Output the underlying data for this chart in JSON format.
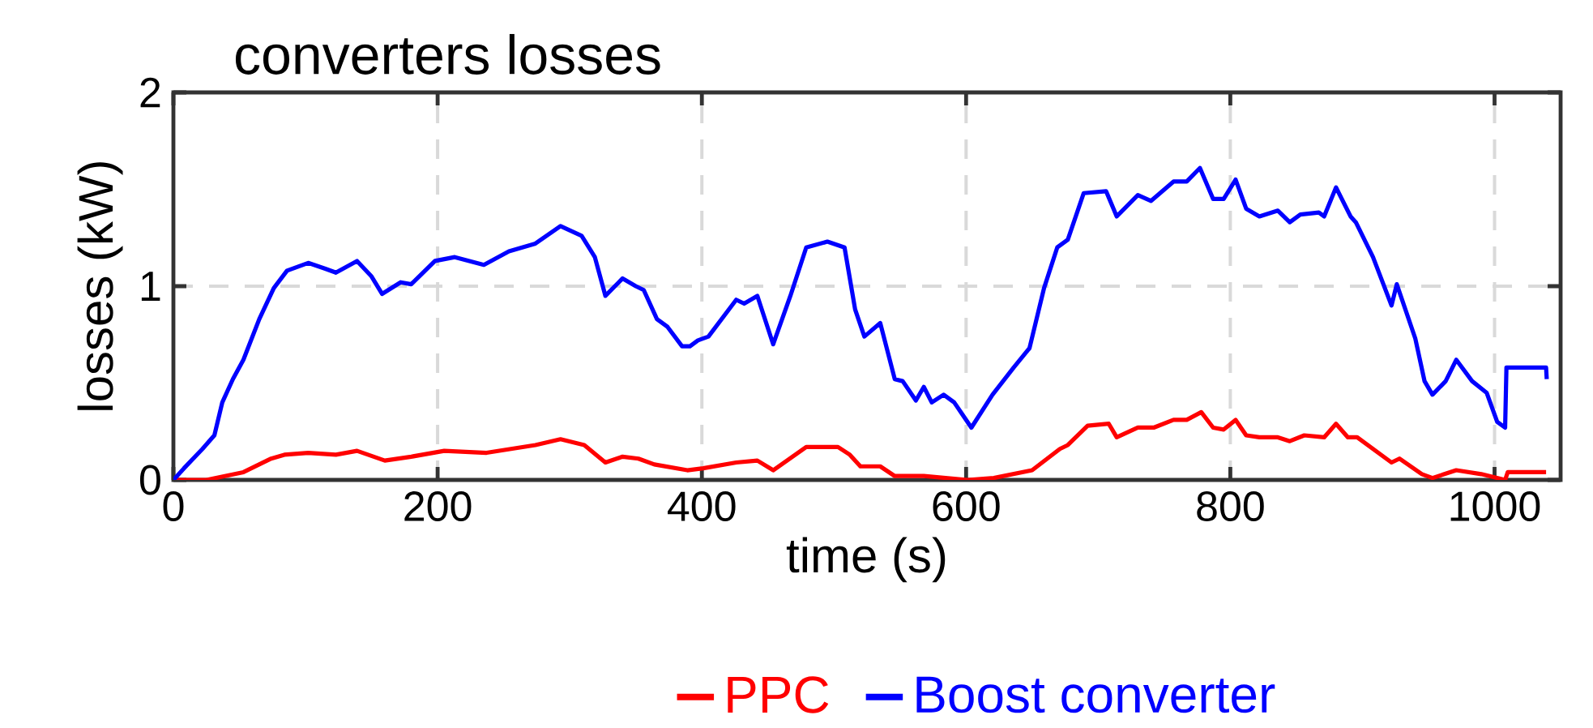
{
  "chart_data": {
    "type": "line",
    "title": "converters losses",
    "xlabel": "time (s)",
    "ylabel": "losses (kW)",
    "xlim": [
      0,
      1050
    ],
    "ylim": [
      0,
      2
    ],
    "xticks": [
      0,
      200,
      400,
      600,
      800,
      1000
    ],
    "yticks": [
      0,
      1,
      2
    ],
    "grid": true,
    "legend": "bottom",
    "marker": "none",
    "line_style": "solid",
    "series": [
      {
        "name": "PPC",
        "color": "#ff0000",
        "x": [
          0,
          25,
          53,
          74,
          84,
          102,
          123,
          139,
          160,
          180,
          205,
          237,
          274,
          293,
          311,
          327,
          340,
          352,
          364,
          389,
          401,
          426,
          442,
          454,
          479,
          503,
          512,
          520,
          535,
          546,
          568,
          601,
          621,
          650,
          671,
          677,
          692,
          708,
          714,
          730,
          742,
          757,
          767,
          778,
          787,
          795,
          804,
          812,
          822,
          836,
          845,
          856,
          871,
          880,
          889,
          896,
          922,
          928,
          945,
          953,
          971,
          990,
          1008,
          1010,
          1039
        ],
        "values": [
          0,
          0,
          0.04,
          0.11,
          0.13,
          0.14,
          0.13,
          0.15,
          0.1,
          0.12,
          0.15,
          0.14,
          0.18,
          0.21,
          0.18,
          0.09,
          0.12,
          0.11,
          0.08,
          0.05,
          0.06,
          0.09,
          0.1,
          0.05,
          0.17,
          0.17,
          0.13,
          0.07,
          0.07,
          0.02,
          0.02,
          0,
          0.01,
          0.05,
          0.16,
          0.18,
          0.28,
          0.29,
          0.22,
          0.27,
          0.27,
          0.31,
          0.31,
          0.35,
          0.27,
          0.26,
          0.31,
          0.23,
          0.22,
          0.22,
          0.2,
          0.23,
          0.22,
          0.29,
          0.22,
          0.22,
          0.09,
          0.11,
          0.03,
          0.01,
          0.05,
          0.03,
          0,
          0.04,
          0.04
        ]
      },
      {
        "name": "Boost converter",
        "color": "#0000ff",
        "x": [
          0,
          8,
          22,
          31,
          37,
          45,
          53,
          65,
          76,
          86,
          102,
          115,
          123,
          139,
          150,
          158,
          172,
          180,
          198,
          213,
          235,
          254,
          274,
          293,
          309,
          319,
          327,
          340,
          350,
          356,
          366,
          374,
          385,
          391,
          397,
          405,
          426,
          432,
          442,
          454,
          467,
          479,
          495,
          508,
          516,
          523,
          535,
          546,
          552,
          562,
          568,
          574,
          583,
          591,
          597,
          604,
          620,
          636,
          648,
          659,
          669,
          677,
          689,
          706,
          714,
          730,
          740,
          757,
          767,
          777,
          787,
          795,
          804,
          812,
          822,
          836,
          845,
          853,
          867,
          871,
          880,
          891,
          895,
          908,
          922,
          926,
          940,
          947,
          953,
          963,
          971,
          983,
          994,
          1002,
          1008,
          1009,
          1039,
          1039.5
        ],
        "values": [
          0,
          0.06,
          0.16,
          0.23,
          0.4,
          0.52,
          0.62,
          0.83,
          0.99,
          1.08,
          1.12,
          1.09,
          1.07,
          1.13,
          1.05,
          0.96,
          1.02,
          1.01,
          1.13,
          1.15,
          1.11,
          1.18,
          1.22,
          1.31,
          1.26,
          1.15,
          0.95,
          1.04,
          1,
          0.98,
          0.83,
          0.79,
          0.69,
          0.69,
          0.72,
          0.74,
          0.93,
          0.91,
          0.95,
          0.7,
          0.95,
          1.2,
          1.23,
          1.2,
          0.88,
          0.74,
          0.81,
          0.52,
          0.51,
          0.41,
          0.48,
          0.4,
          0.44,
          0.4,
          0.34,
          0.27,
          0.44,
          0.58,
          0.68,
          0.99,
          1.2,
          1.24,
          1.48,
          1.49,
          1.36,
          1.47,
          1.44,
          1.54,
          1.54,
          1.61,
          1.45,
          1.45,
          1.55,
          1.4,
          1.36,
          1.39,
          1.33,
          1.37,
          1.38,
          1.36,
          1.51,
          1.36,
          1.33,
          1.15,
          0.9,
          1.01,
          0.73,
          0.51,
          0.44,
          0.51,
          0.62,
          0.51,
          0.45,
          0.3,
          0.27,
          0.58,
          0.58,
          0.52
        ]
      }
    ]
  }
}
